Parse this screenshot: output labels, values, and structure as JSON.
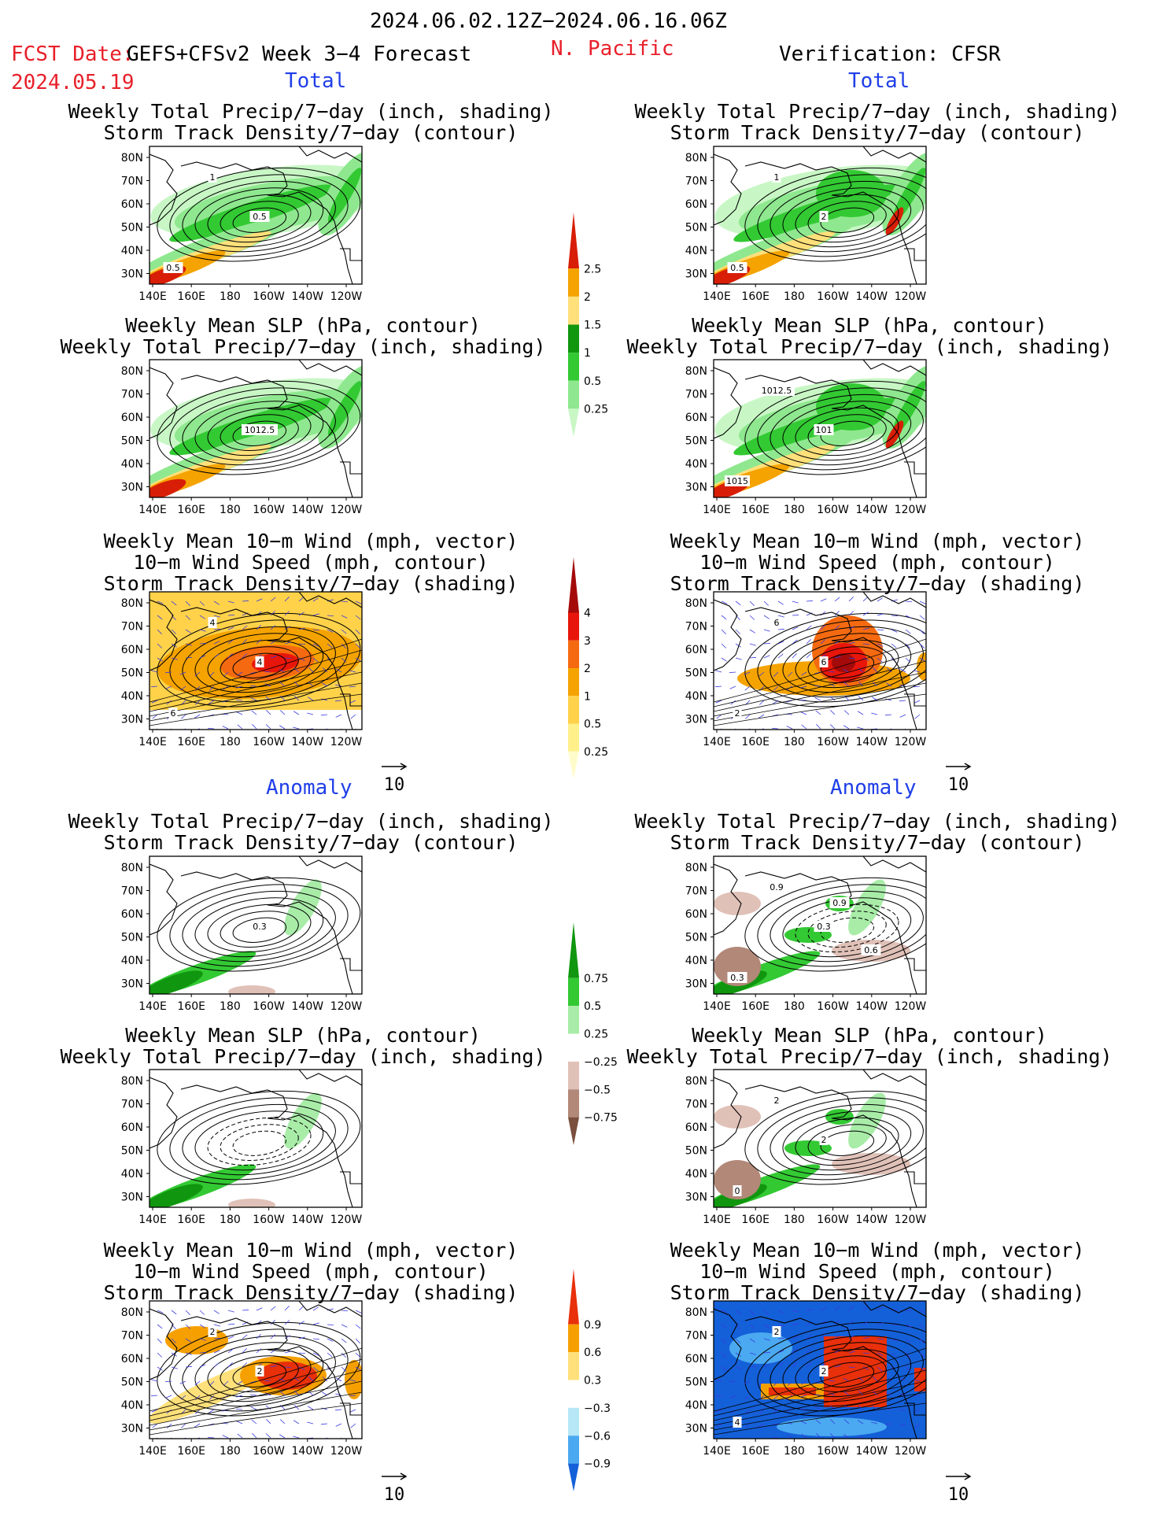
{
  "header": {
    "date_range": "2024.06.02.12Z−2024.06.16.06Z",
    "fcst_label": "FCST Date:",
    "fcst_model": "GEFS+CFSv2 Week 3−4 Forecast",
    "fcst_date": "2024.05.19",
    "region": "N. Pacific",
    "verification": "Verification: CFSR"
  },
  "sections": {
    "total": "Total",
    "anomaly": "Anomaly"
  },
  "titles": {
    "precip_storm": [
      "Weekly Total Precip/7−day (inch, shading)",
      "Storm Track Density/7−day (contour)"
    ],
    "slp_precip": [
      "Weekly Mean SLP (hPa, contour)",
      "Weekly Total Precip/7−day (inch, shading)"
    ],
    "wind_storm": [
      "Weekly Mean 10−m Wind (mph, vector)",
      "10−m Wind Speed (mph, contour)",
      "Storm Track Density/7−day (shading)"
    ]
  },
  "axes": {
    "lat_labels": [
      "80N",
      "70N",
      "60N",
      "50N",
      "40N",
      "30N"
    ],
    "lon_labels": [
      "140E",
      "160E",
      "180",
      "160W",
      "140W",
      "120W"
    ]
  },
  "vector_ref": "10",
  "colorbars": {
    "precip_total": {
      "labels": [
        "2.5",
        "2",
        "1.5",
        "1",
        "0.5",
        "0.25"
      ],
      "colors": [
        "#d81e06",
        "#f5a300",
        "#ffe07a",
        "#10960f",
        "#33c933",
        "#8fe88f",
        "#c8f7c5"
      ]
    },
    "storm_total": {
      "labels": [
        "4",
        "3",
        "2",
        "1",
        "0.5",
        "0.25"
      ],
      "colors": [
        "#a40a0a",
        "#e8160a",
        "#f56a10",
        "#f5a300",
        "#ffd24a",
        "#fff08a",
        "#fffccc"
      ]
    },
    "precip_anom": {
      "labels": [
        "0.75",
        "0.5",
        "0.25",
        "−0.25",
        "−0.5",
        "−0.75"
      ],
      "colors": [
        "#10960f",
        "#33c933",
        "#a8eca8",
        "#ffffff",
        "#e0c1b8",
        "#b28878",
        "#7a4f3d"
      ]
    },
    "storm_anom": {
      "labels": [
        "0.9",
        "0.6",
        "0.3",
        "−0.3",
        "−0.6",
        "−0.9"
      ],
      "colors": [
        "#e8300a",
        "#f5a000",
        "#ffe07a",
        "#ffffff",
        "#b5e7f7",
        "#4aa9f0",
        "#1460d8"
      ]
    }
  },
  "contour_labels": {
    "fc_total_precip": [
      "0.5",
      "1",
      "0.5"
    ],
    "obs_total_precip": [
      "2",
      "1",
      "0.5"
    ],
    "fc_total_slp": [
      "1012.5"
    ],
    "obs_total_slp": [
      "101",
      "1012.5",
      "1015"
    ],
    "fc_total_wind": [
      "4",
      "4",
      "6"
    ],
    "obs_total_wind": [
      "6",
      "6",
      "2"
    ],
    "fc_anom_precip": [
      "0.3"
    ],
    "obs_anom_precip": [
      "0.3",
      "0.9",
      "0.3",
      "0.6",
      "0.9"
    ],
    "obs_anom_slp": [
      "2",
      "2",
      "0"
    ],
    "fc_anom_wind": [
      "2",
      "2"
    ],
    "obs_anom_wind": [
      "2",
      "2",
      "4"
    ]
  }
}
